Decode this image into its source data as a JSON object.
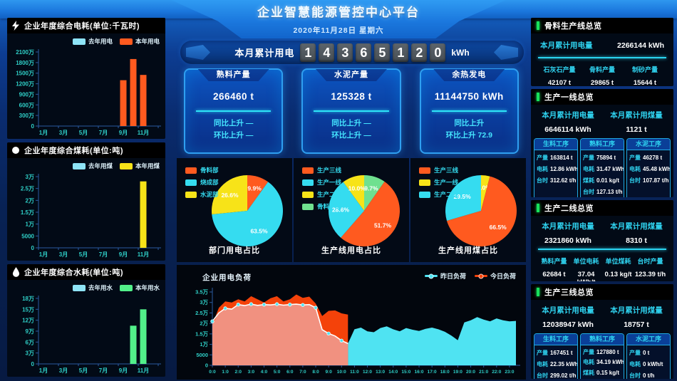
{
  "header": {
    "title": "企业智慧能源管控中心平台",
    "date": "2020年11月28日 星期六",
    "counter_label": "本月累计用电",
    "counter_digits": "14365120",
    "counter_unit": "kWh"
  },
  "colors": {
    "accent_cyan": "#35dcf0",
    "orange": "#ff5a1f",
    "yellow": "#f7e318",
    "green": "#52f08a",
    "legend_blue": "#8ee4f7",
    "green_accent": "#17e15c",
    "area_cyan": "#4fe3f2",
    "area_red": "#f4420a",
    "area_salmon": "#f19180",
    "axis_text": "#2fd0c8",
    "axis_line": "#2a5aa0"
  },
  "kpi_cards": [
    {
      "title": "熟料产量",
      "value": "266460 t",
      "line1": "同比上升 —",
      "line2": "环比上升 —"
    },
    {
      "title": "水泥产量",
      "value": "125328 t",
      "line1": "同比上升 —",
      "line2": "环比上升 —"
    },
    {
      "title": "余热发电",
      "value": "11144750 kWh",
      "line1": "同比上升",
      "line2": "环比上升 72.9"
    }
  ],
  "chart_data": [
    {
      "type": "bar",
      "name": "yearly-electricity-chart",
      "icon": "lightning",
      "title": "企业年度综合电耗(单位:千瓦时)",
      "categories": [
        "1月",
        "2月",
        "3月",
        "4月",
        "5月",
        "6月",
        "7月",
        "8月",
        "9月",
        "10月",
        "11月",
        "12月"
      ],
      "x_shown": [
        "1月",
        "3月",
        "5月",
        "7月",
        "9月",
        "11月"
      ],
      "y_ticks": [
        "0",
        "300万",
        "600万",
        "900万",
        "1200万",
        "1500万",
        "1800万",
        "2100万"
      ],
      "ylim": 21000000,
      "series": [
        {
          "name": "去年用电",
          "color": "#8ee4f7",
          "values": [
            0,
            0,
            0,
            0,
            0,
            0,
            0,
            0,
            0,
            0,
            0,
            0
          ]
        },
        {
          "name": "本年用电",
          "color": "#ff5a1f",
          "values": [
            0,
            0,
            0,
            0,
            0,
            0,
            0,
            0,
            13000000,
            19000000,
            14500000,
            0
          ]
        }
      ]
    },
    {
      "type": "bar",
      "name": "yearly-coal-chart",
      "icon": "circle",
      "title": "企业年度综合煤耗(单位:吨)",
      "categories": [
        "1月",
        "2月",
        "3月",
        "4月",
        "5月",
        "6月",
        "7月",
        "8月",
        "9月",
        "10月",
        "11月",
        "12月"
      ],
      "x_shown": [
        "1月",
        "3月",
        "5月",
        "7月",
        "9月",
        "11月"
      ],
      "y_ticks": [
        "0",
        "5000",
        "1万",
        "1.5万",
        "2万",
        "2.5万",
        "3万"
      ],
      "ylim": 30000,
      "series": [
        {
          "name": "去年用煤",
          "color": "#8ee4f7",
          "values": [
            0,
            0,
            0,
            0,
            0,
            0,
            0,
            0,
            0,
            0,
            0,
            0
          ]
        },
        {
          "name": "本年用煤",
          "color": "#f7e318",
          "values": [
            0,
            0,
            0,
            0,
            0,
            0,
            0,
            0,
            0,
            0,
            28000,
            0
          ]
        }
      ]
    },
    {
      "type": "bar",
      "name": "yearly-water-chart",
      "icon": "drop",
      "title": "企业年度综合水耗(单位:吨)",
      "categories": [
        "1月",
        "2月",
        "3月",
        "4月",
        "5月",
        "6月",
        "7月",
        "8月",
        "9月",
        "10月",
        "11月",
        "12月"
      ],
      "x_shown": [
        "1月",
        "3月",
        "5月",
        "7月",
        "9月",
        "11月"
      ],
      "y_ticks": [
        "0",
        "3万",
        "6万",
        "9万",
        "12万",
        "15万",
        "18万"
      ],
      "ylim": 180000,
      "series": [
        {
          "name": "去年用水",
          "color": "#8ee4f7",
          "values": [
            0,
            0,
            0,
            0,
            0,
            0,
            0,
            0,
            0,
            0,
            0,
            0
          ]
        },
        {
          "name": "本年用水",
          "color": "#52f08a",
          "values": [
            0,
            0,
            0,
            0,
            0,
            0,
            0,
            0,
            0,
            105000,
            150000,
            0
          ]
        }
      ]
    },
    {
      "type": "pie",
      "name": "department-electricity-pie",
      "title": "部门用电占比",
      "legend": [
        {
          "label": "骨料部",
          "color": "#ff5a1f"
        },
        {
          "label": "烧成部",
          "color": "#35dcf0"
        },
        {
          "label": "水泥部",
          "color": "#f7e318"
        }
      ],
      "slices": [
        {
          "label": "骨料部",
          "value": 9.9,
          "color": "#ff5a1f",
          "text": "9.9%"
        },
        {
          "label": "烧成部",
          "value": 63.5,
          "color": "#35dcf0",
          "text": "63.5%"
        },
        {
          "label": "水泥部",
          "value": 26.6,
          "color": "#f7e318",
          "text": "26.6%"
        }
      ]
    },
    {
      "type": "pie",
      "name": "line-electricity-pie",
      "title": "生产线用电占比",
      "legend": [
        {
          "label": "生产三线",
          "color": "#ff5a1f"
        },
        {
          "label": "生产一线",
          "color": "#35dcf0"
        },
        {
          "label": "生产二线",
          "color": "#f7e318"
        },
        {
          "label": "骨料产线",
          "color": "#6fe08f"
        }
      ],
      "slices": [
        {
          "label": "骨料产线",
          "value": 9.7,
          "color": "#6fe08f",
          "text": "9.7%"
        },
        {
          "label": "生产三线",
          "value": 51.7,
          "color": "#ff5a1f",
          "text": "51.7%"
        },
        {
          "label": "生产一线",
          "value": 28.6,
          "color": "#35dcf0",
          "text": "28.6%"
        },
        {
          "label": "生产二线",
          "value": 10.0,
          "color": "#f7e318",
          "text": "10.0%"
        }
      ]
    },
    {
      "type": "pie",
      "name": "line-coal-pie",
      "title": "生产线用煤占比",
      "legend": [
        {
          "label": "生产三线",
          "color": "#ff5a1f"
        },
        {
          "label": "生产一线",
          "color": "#f7e318"
        },
        {
          "label": "生产二线",
          "color": "#35dcf0"
        }
      ],
      "slices": [
        {
          "label": "生产一线",
          "value": 4.0,
          "color": "#f7e318",
          "text": "4.0%"
        },
        {
          "label": "生产三线",
          "value": 66.5,
          "color": "#ff5a1f",
          "text": "66.5%"
        },
        {
          "label": "生产二线",
          "value": 29.5,
          "color": "#35dcf0",
          "text": "29.5%"
        }
      ]
    },
    {
      "type": "area",
      "name": "electricity-load-chart",
      "title": "企业用电负荷",
      "legend": [
        {
          "label": "昨日负荷",
          "color": "#4fe3f2"
        },
        {
          "label": "今日负荷",
          "color": "#f4420a"
        }
      ],
      "x_labels": [
        "0:0",
        "1:0",
        "2:0",
        "3:0",
        "4:0",
        "5:0",
        "6:0",
        "7:0",
        "8:0",
        "9:0",
        "10:0",
        "11:0",
        "12:0",
        "13:0",
        "14:0",
        "15:0",
        "16:0",
        "17:0",
        "18:0",
        "19:0",
        "20:0",
        "21:0",
        "22:0",
        "23:0"
      ],
      "y_ticks": [
        "0",
        "5000",
        "1万",
        "1.5万",
        "2万",
        "2.5万",
        "3万",
        "3.5万"
      ],
      "ylim": 35000,
      "series": [
        {
          "name": "昨日负荷",
          "color": "#4fe3f2",
          "values": [
            21000,
            25000,
            27200,
            26800,
            29000,
            28500,
            29200,
            28600,
            29000,
            28800,
            29200,
            28700,
            29000,
            29200,
            28800,
            29000,
            27500,
            17000,
            15200,
            14000,
            11800,
            10400,
            17200,
            18000,
            16200,
            15800,
            17800,
            18600,
            17200,
            16200,
            17800,
            17000,
            16400,
            17400,
            18000,
            17200,
            16000,
            14200,
            12000,
            20500,
            21500,
            23000,
            21800,
            21000,
            22400,
            21500,
            21000,
            21200
          ]
        },
        {
          "name": "今日负荷",
          "color": "#f4420a",
          "values": [
            19500,
            27500,
            30500,
            30000,
            31500,
            30500,
            33000,
            31500,
            30000,
            32000,
            33000,
            30500,
            31500,
            33800,
            32200,
            32800,
            29500,
            23500,
            26000,
            26200,
            24800,
            24200
          ]
        }
      ]
    }
  ],
  "right_panels": [
    {
      "title": "骨料生产线总览",
      "variant": "single",
      "stats": [
        {
          "label": "本月累计用电量",
          "value": "2266144 kWh"
        }
      ],
      "columns": [
        {
          "label": "石灰石产量",
          "value": "42107 t"
        },
        {
          "label": "骨料产量",
          "value": "29865 t"
        },
        {
          "label": "制砂产量",
          "value": "15644 t"
        }
      ]
    },
    {
      "title": "生产一线总览",
      "variant": "procs",
      "stats": [
        {
          "label": "本月累计用电量",
          "value": "6646114 kWh"
        },
        {
          "label": "本月累计用煤量",
          "value": "1121 t"
        }
      ],
      "procs": [
        {
          "name": "生料工序",
          "rows": [
            [
              "产量",
              "163814 t"
            ],
            [
              "电耗",
              "12.86 kWh/t"
            ],
            [
              "台时",
              "312.62 t/h"
            ]
          ]
        },
        {
          "name": "熟料工序",
          "rows": [
            [
              "产量",
              "75894 t"
            ],
            [
              "电耗",
              "31.47 kWh/t"
            ],
            [
              "煤耗",
              "0.01 kg/t"
            ],
            [
              "台时",
              "127.13 t/h"
            ]
          ]
        },
        {
          "name": "水泥工序",
          "rows": [
            [
              "产量",
              "46278 t"
            ],
            [
              "电耗",
              "45.48 kWh/t"
            ],
            [
              "台时",
              "107.87 t/h"
            ]
          ]
        }
      ]
    },
    {
      "title": "生产二线总览",
      "variant": "cols",
      "stats": [
        {
          "label": "本月累计用电量",
          "value": "2321860 kWh"
        },
        {
          "label": "本月累计用煤量",
          "value": "8310 t"
        }
      ],
      "columns": [
        {
          "label": "熟料产量",
          "value": "62684 t"
        },
        {
          "label": "单位电耗",
          "value": "37.04 kWh/t"
        },
        {
          "label": "单位煤耗",
          "value": "0.13 kg/t"
        },
        {
          "label": "台时产量",
          "value": "123.39 t/h"
        }
      ]
    },
    {
      "title": "生产三线总览",
      "variant": "procs",
      "stats": [
        {
          "label": "本月累计用电量",
          "value": "12038947 kWh"
        },
        {
          "label": "本月累计用煤量",
          "value": "18757 t"
        }
      ],
      "procs": [
        {
          "name": "生料工序",
          "rows": [
            [
              "产量",
              "167451 t"
            ],
            [
              "电耗",
              "22.35 kWh/t"
            ],
            [
              "台时",
              "299.02 t/h"
            ]
          ]
        },
        {
          "name": "熟料工序",
          "rows": [
            [
              "产量",
              "127880 t"
            ],
            [
              "电耗",
              "34.19 kWh/t"
            ],
            [
              "煤耗",
              "0.15 kg/t"
            ],
            [
              "台时",
              "251.73 t/h"
            ]
          ]
        },
        {
          "name": "水泥工序",
          "rows": [
            [
              "产量",
              "0 t"
            ],
            [
              "电耗",
              "0 kWh/t"
            ],
            [
              "台时",
              "0 t/h"
            ]
          ]
        }
      ]
    }
  ]
}
